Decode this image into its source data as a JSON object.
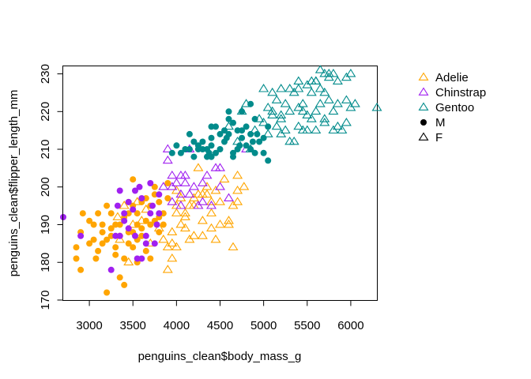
{
  "chart_data": {
    "type": "scatter",
    "title": "",
    "xlabel": "penguins_clean$body_mass_g",
    "ylabel": "penguins_clean$flipper_length_mm",
    "xlim": [
      2700,
      6300
    ],
    "ylim": [
      170,
      232
    ],
    "xticks": [
      3000,
      3500,
      4000,
      4500,
      5000,
      5500,
      6000
    ],
    "yticks": [
      170,
      180,
      190,
      200,
      210,
      220,
      230
    ],
    "grid": false,
    "legend_position": "right",
    "legend": [
      {
        "label": "Adelie",
        "symbol": "open-triangle",
        "color": "#FFA500"
      },
      {
        "label": "Chinstrap",
        "symbol": "open-triangle",
        "color": "#A020F0"
      },
      {
        "label": "Gentoo",
        "symbol": "open-triangle",
        "color": "#008B8B"
      },
      {
        "label": "M",
        "symbol": "filled-circle",
        "color": "#000000"
      },
      {
        "label": "F",
        "symbol": "open-triangle",
        "color": "#000000"
      }
    ],
    "series": [
      {
        "species": "Adelie",
        "sex": "M",
        "color": "#FFA500",
        "marker": "filled-circle",
        "points": [
          [
            2850,
            184
          ],
          [
            2850,
            181
          ],
          [
            2900,
            188
          ],
          [
            2900,
            178
          ],
          [
            2925,
            193
          ],
          [
            3000,
            185
          ],
          [
            3050,
            190
          ],
          [
            3050,
            186
          ],
          [
            3075,
            181
          ],
          [
            3100,
            183
          ],
          [
            3150,
            188
          ],
          [
            3150,
            190
          ],
          [
            3200,
            172
          ],
          [
            3200,
            186
          ],
          [
            3250,
            189
          ],
          [
            3250,
            187
          ],
          [
            3300,
            182
          ],
          [
            3300,
            184
          ],
          [
            3350,
            190
          ],
          [
            3350,
            176
          ],
          [
            3400,
            174
          ],
          [
            3400,
            181
          ],
          [
            3450,
            185
          ],
          [
            3450,
            193
          ],
          [
            3500,
            188
          ],
          [
            3500,
            195
          ],
          [
            3550,
            186
          ],
          [
            3550,
            180
          ],
          [
            3600,
            189
          ],
          [
            3600,
            196
          ],
          [
            3650,
            191
          ],
          [
            3650,
            183
          ],
          [
            3700,
            181
          ],
          [
            3700,
            190
          ],
          [
            3750,
            198
          ],
          [
            3800,
            192
          ],
          [
            3800,
            188
          ],
          [
            3850,
            193
          ],
          [
            3900,
            197
          ],
          [
            3100,
            193
          ],
          [
            3200,
            195
          ],
          [
            3300,
            190
          ],
          [
            3400,
            192
          ],
          [
            3450,
            188
          ],
          [
            3500,
            184
          ],
          [
            3550,
            193
          ],
          [
            3600,
            187
          ],
          [
            3700,
            195
          ],
          [
            3750,
            200
          ],
          [
            3800,
            196
          ],
          [
            3250,
            193
          ],
          [
            3150,
            185
          ],
          [
            3000,
            191
          ],
          [
            3350,
            187
          ],
          [
            3450,
            196
          ],
          [
            3550,
            190
          ],
          [
            3650,
            197
          ],
          [
            3750,
            191
          ],
          [
            3850,
            190
          ],
          [
            3500,
            202
          ],
          [
            3900,
            201
          ]
        ]
      },
      {
        "species": "Adelie",
        "sex": "F",
        "color": "#FFA500",
        "marker": "open-triangle",
        "points": [
          [
            3900,
            178
          ],
          [
            3950,
            181
          ],
          [
            3950,
            188
          ],
          [
            4000,
            184
          ],
          [
            4000,
            193
          ],
          [
            4050,
            190
          ],
          [
            4100,
            192
          ],
          [
            4150,
            195
          ],
          [
            4200,
            197
          ],
          [
            4250,
            205
          ],
          [
            4300,
            198
          ],
          [
            4350,
            200
          ],
          [
            4400,
            196
          ],
          [
            4450,
            186
          ],
          [
            4500,
            196
          ],
          [
            4550,
            202
          ],
          [
            4600,
            191
          ],
          [
            4650,
            184
          ],
          [
            4700,
            203
          ],
          [
            4700,
            199
          ],
          [
            4050,
            197
          ],
          [
            4100,
            189
          ],
          [
            4150,
            186
          ],
          [
            4200,
            195
          ],
          [
            4250,
            198
          ],
          [
            4300,
            191
          ],
          [
            4350,
            198
          ],
          [
            4400,
            193
          ],
          [
            4450,
            199
          ],
          [
            4500,
            190
          ],
          [
            4600,
            190
          ],
          [
            4650,
            195
          ],
          [
            4700,
            196
          ],
          [
            4775,
            200
          ],
          [
            3900,
            184
          ],
          [
            3850,
            186
          ],
          [
            3800,
            189
          ],
          [
            3700,
            185
          ],
          [
            3650,
            194
          ],
          [
            3600,
            191
          ],
          [
            3550,
            196
          ],
          [
            3500,
            190
          ],
          [
            3450,
            180
          ],
          [
            3400,
            195
          ],
          [
            3350,
            186
          ],
          [
            3325,
            192
          ],
          [
            4000,
            195
          ],
          [
            4100,
            193
          ],
          [
            4200,
            187
          ],
          [
            4250,
            195
          ],
          [
            4300,
            187
          ],
          [
            4400,
            189
          ],
          [
            4000,
            199
          ],
          [
            3950,
            185
          ]
        ]
      },
      {
        "species": "Chinstrap",
        "sex": "M",
        "color": "#A020F0",
        "marker": "filled-circle",
        "points": [
          [
            2700,
            192
          ],
          [
            2900,
            187
          ],
          [
            3250,
            178
          ],
          [
            3300,
            187
          ],
          [
            3325,
            195
          ],
          [
            3350,
            187
          ],
          [
            3400,
            191
          ],
          [
            3450,
            189
          ],
          [
            3500,
            194
          ],
          [
            3525,
            187
          ],
          [
            3550,
            181
          ],
          [
            3600,
            181
          ],
          [
            3650,
            185
          ],
          [
            3650,
            187
          ],
          [
            3700,
            193
          ],
          [
            3725,
            195
          ],
          [
            3750,
            185
          ],
          [
            3800,
            198
          ],
          [
            3800,
            193
          ],
          [
            3525,
            199
          ],
          [
            3450,
            196
          ],
          [
            3400,
            193
          ],
          [
            3350,
            199
          ],
          [
            3575,
            200
          ],
          [
            3700,
            201
          ],
          [
            3775,
            190
          ],
          [
            3600,
            197
          ]
        ]
      },
      {
        "species": "Chinstrap",
        "sex": "F",
        "color": "#A020F0",
        "marker": "open-triangle",
        "points": [
          [
            3900,
            210
          ],
          [
            3900,
            207
          ],
          [
            3950,
            200
          ],
          [
            4000,
            201
          ],
          [
            4050,
            203
          ],
          [
            4100,
            203
          ],
          [
            4150,
            210
          ],
          [
            4200,
            200
          ],
          [
            4250,
            195
          ],
          [
            4300,
            201
          ],
          [
            4400,
            195
          ],
          [
            4450,
            205
          ],
          [
            4500,
            205
          ],
          [
            4800,
            210
          ],
          [
            3950,
            196
          ],
          [
            4050,
            198
          ],
          [
            4100,
            201
          ],
          [
            4300,
            196
          ],
          [
            4500,
            200
          ],
          [
            3850,
            200
          ],
          [
            3950,
            203
          ],
          [
            4150,
            198
          ],
          [
            4350,
            203
          ],
          [
            4600,
            197
          ],
          [
            4050,
            195
          ]
        ]
      },
      {
        "species": "Gentoo",
        "sex": "M",
        "color": "#008B8B",
        "marker": "filled-circle",
        "points": [
          [
            4100,
            210
          ],
          [
            4150,
            210
          ],
          [
            4200,
            208
          ],
          [
            4250,
            211
          ],
          [
            4300,
            212
          ],
          [
            4350,
            208
          ],
          [
            4400,
            208
          ],
          [
            4400,
            213
          ],
          [
            4450,
            216
          ],
          [
            4500,
            210
          ],
          [
            4550,
            212
          ],
          [
            4600,
            214
          ],
          [
            4650,
            208
          ],
          [
            4700,
            210
          ],
          [
            4750,
            213
          ],
          [
            4800,
            211
          ],
          [
            4850,
            214
          ],
          [
            4900,
            218
          ],
          [
            4950,
            212
          ],
          [
            5000,
            209
          ],
          [
            5050,
            207
          ],
          [
            4300,
            210
          ],
          [
            4350,
            210
          ],
          [
            4400,
            211
          ],
          [
            4450,
            209
          ],
          [
            4550,
            215
          ],
          [
            4650,
            217
          ],
          [
            4700,
            215
          ],
          [
            4750,
            215
          ],
          [
            4850,
            210
          ],
          [
            4925,
            214
          ],
          [
            5000,
            213
          ],
          [
            4850,
            222
          ],
          [
            4600,
            218
          ],
          [
            4500,
            214
          ],
          [
            4400,
            208
          ],
          [
            4375,
            209
          ],
          [
            4250,
            210
          ],
          [
            4200,
            212
          ],
          [
            4050,
            209
          ],
          [
            4000,
            211
          ],
          [
            3950,
            209
          ],
          [
            4600,
            220
          ],
          [
            4750,
            220
          ],
          [
            4900,
            209
          ],
          [
            4800,
            216
          ],
          [
            4150,
            214
          ],
          [
            4400,
            216
          ],
          [
            4575,
            213
          ],
          [
            4650,
            209
          ],
          [
            4725,
            211
          ],
          [
            4875,
            212
          ],
          [
            5050,
            216
          ]
        ]
      },
      {
        "species": "Gentoo",
        "sex": "F",
        "color": "#008B8B",
        "marker": "open-triangle",
        "points": [
          [
            4600,
            216
          ],
          [
            4700,
            212
          ],
          [
            4750,
            220
          ],
          [
            4800,
            222
          ],
          [
            4850,
            210
          ],
          [
            4900,
            215
          ],
          [
            4950,
            218
          ],
          [
            5000,
            217
          ],
          [
            5050,
            221
          ],
          [
            5100,
            219
          ],
          [
            5150,
            223
          ],
          [
            5200,
            218
          ],
          [
            5250,
            222
          ],
          [
            5300,
            220
          ],
          [
            5350,
            225
          ],
          [
            5400,
            226
          ],
          [
            5450,
            222
          ],
          [
            5500,
            227
          ],
          [
            5550,
            225
          ],
          [
            5600,
            228
          ],
          [
            5650,
            231
          ],
          [
            5700,
            230
          ],
          [
            5750,
            229
          ],
          [
            5800,
            230
          ],
          [
            5850,
            228
          ],
          [
            5950,
            229
          ],
          [
            6000,
            230
          ],
          [
            6050,
            222
          ],
          [
            6300,
            221
          ],
          [
            5000,
            226
          ],
          [
            5100,
            225
          ],
          [
            5200,
            219
          ],
          [
            5300,
            226
          ],
          [
            5400,
            221
          ],
          [
            5500,
            215
          ],
          [
            5550,
            218
          ],
          [
            5600,
            215
          ],
          [
            5650,
            222
          ],
          [
            5700,
            218
          ],
          [
            5750,
            230
          ],
          [
            5850,
            222
          ],
          [
            5950,
            223
          ],
          [
            6000,
            221
          ],
          [
            5100,
            220
          ],
          [
            5200,
            214
          ],
          [
            5300,
            212
          ],
          [
            5400,
            216
          ],
          [
            5450,
            215
          ],
          [
            5500,
            219
          ],
          [
            5600,
            220
          ],
          [
            5700,
            217
          ],
          [
            5800,
            215
          ],
          [
            5900,
            215
          ],
          [
            5050,
            214
          ],
          [
            5150,
            216
          ],
          [
            5250,
            215
          ],
          [
            5350,
            212
          ],
          [
            5450,
            220
          ],
          [
            5550,
            228
          ],
          [
            5650,
            226
          ],
          [
            5750,
            223
          ],
          [
            5850,
            216
          ],
          [
            5950,
            217
          ],
          [
            5200,
            226
          ],
          [
            5400,
            228
          ],
          [
            5600,
            228
          ],
          [
            5700,
            225
          ],
          [
            5800,
            220
          ]
        ]
      }
    ]
  }
}
